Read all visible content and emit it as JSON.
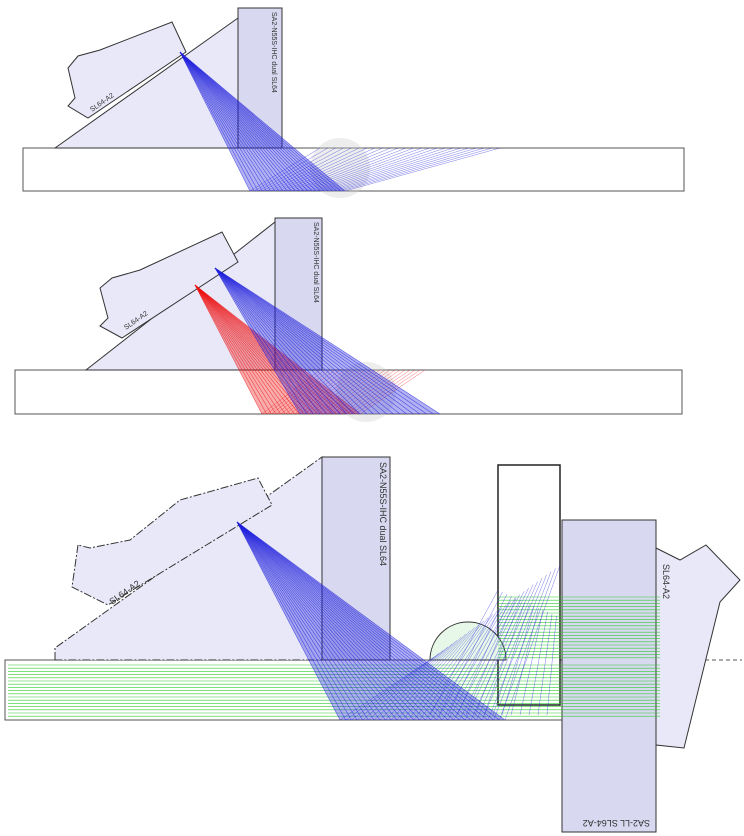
{
  "panels": [
    {
      "probe_label": "SL64-A2",
      "wedge_label": "SA2-N55S-IHC dual SL64"
    },
    {
      "probe_label": "SL64-A2",
      "wedge_label": "SA2-N55S-IHC dual SL64"
    },
    {
      "probe_label": "SL64-A2",
      "wedge_label": "SA2-N55S-IHC dual SL64",
      "right_probe_label": "SL64-A2",
      "right_wedge_label": "SA2-LL SL64-A2"
    }
  ]
}
